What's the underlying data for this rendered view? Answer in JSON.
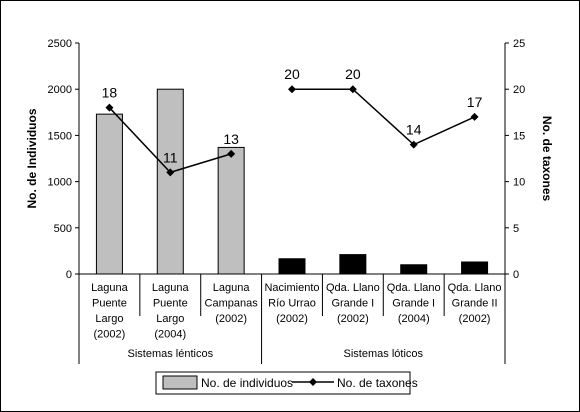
{
  "chart_data": {
    "type": "bar",
    "categories": [
      [
        "Laguna",
        "Puente",
        "Largo",
        "(2002)"
      ],
      [
        "Laguna",
        "Puente",
        "Largo",
        "(2004)"
      ],
      [
        "Laguna",
        "Campanas",
        "(2002)"
      ],
      [
        "Nacimiento",
        "Río Urrao",
        "(2002)"
      ],
      [
        "Qda. Llano",
        "Grande I",
        "(2002)"
      ],
      [
        "Qda. Llano",
        "Grande I",
        "(2004)"
      ],
      [
        "Qda. Llano",
        "Grande II",
        "(2002)"
      ]
    ],
    "groups": [
      {
        "label": "Sistemas lénticos",
        "from": 0,
        "to": 2
      },
      {
        "label": "Sistemas lóticos",
        "from": 3,
        "to": 6
      }
    ],
    "series": [
      {
        "name": "No. de individuos",
        "kind": "bar",
        "axis": "left",
        "values": [
          1730,
          2000,
          1370,
          165,
          210,
          100,
          130
        ],
        "bar_colors": [
          "#bfbfbf",
          "#bfbfbf",
          "#bfbfbf",
          "#000000",
          "#000000",
          "#000000",
          "#000000"
        ]
      },
      {
        "name": "No. de taxones",
        "kind": "line",
        "axis": "right",
        "segments": [
          [
            0,
            1,
            2
          ],
          [
            3,
            4,
            5,
            6
          ]
        ],
        "values": [
          18,
          11,
          13,
          20,
          20,
          14,
          17
        ],
        "labels": [
          "18",
          "11",
          "13",
          "20",
          "20",
          "14",
          "17"
        ]
      }
    ],
    "ylabel": "No. de Individuos",
    "y2label": "No. de taxones",
    "ylim": [
      0,
      2500
    ],
    "y2lim": [
      0,
      25
    ],
    "yticks": [
      "0",
      "500",
      "1000",
      "1500",
      "2000",
      "2500"
    ],
    "y2ticks": [
      "0",
      "5",
      "10",
      "15",
      "20",
      "25"
    ],
    "grid": false,
    "legend_position": "bottom"
  }
}
